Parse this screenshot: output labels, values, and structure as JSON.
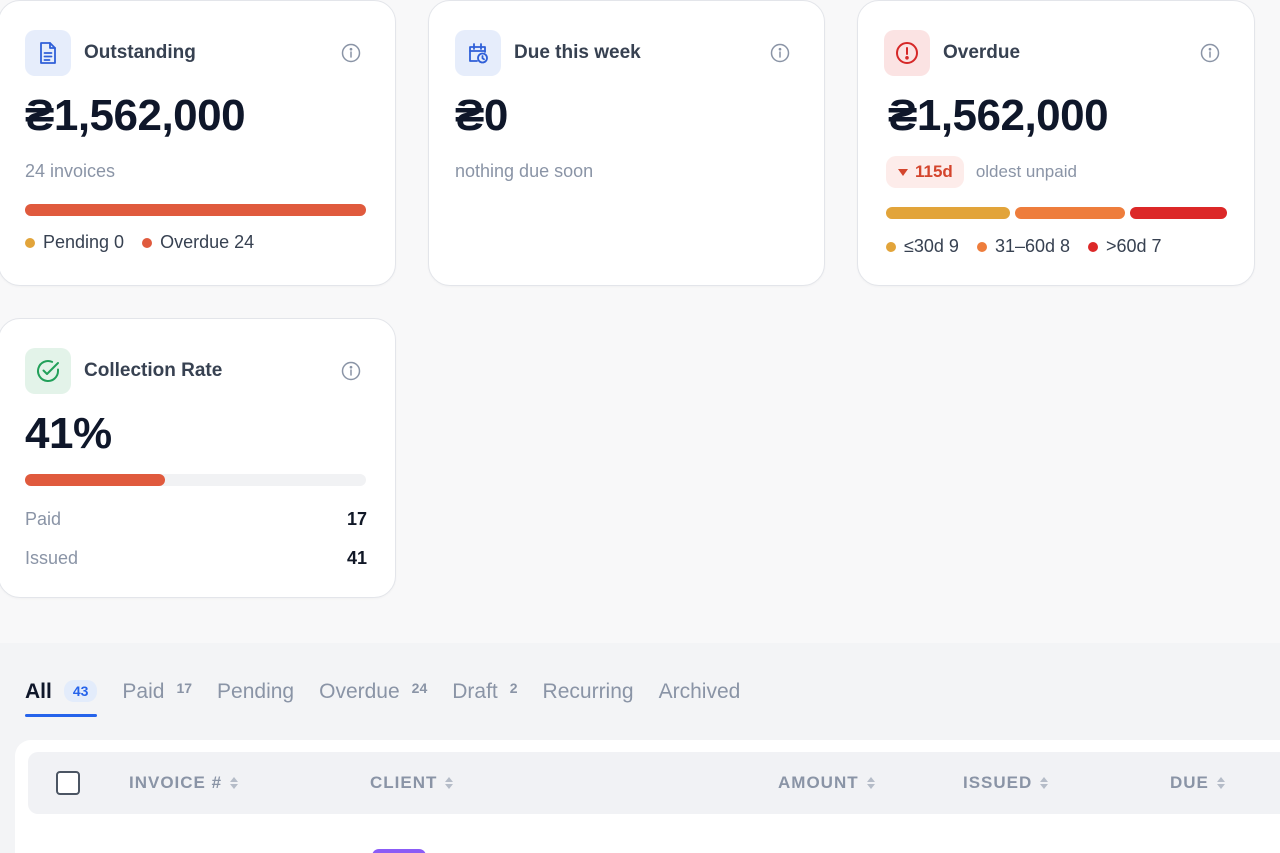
{
  "cards": {
    "outstanding": {
      "title": "Outstanding",
      "icon": "document-icon",
      "amount": "₴1,562,000",
      "subtitle": "24 invoices",
      "bar": {
        "pending_fraction": 0,
        "overdue_fraction": 1,
        "color": "#e05a3d"
      },
      "legend": [
        {
          "label": "Pending 0",
          "color": "#e2a43a"
        },
        {
          "label": "Overdue 24",
          "color": "#e05a3d"
        }
      ]
    },
    "due_this_week": {
      "title": "Due this week",
      "icon": "calendar-clock-icon",
      "amount": "₴0",
      "subtitle": "nothing due soon"
    },
    "overdue": {
      "title": "Overdue",
      "icon": "alert-circle-icon",
      "amount": "₴1,562,000",
      "badge": "115d",
      "badge_note": "oldest unpaid",
      "aging": [
        {
          "label": "≤30d 9",
          "count": 9,
          "color": "#e2a43a"
        },
        {
          "label": "31–60d 8",
          "count": 8,
          "color": "#ee7d3c"
        },
        {
          "label": ">60d 7",
          "count": 7,
          "color": "#dc2828"
        }
      ]
    },
    "collection_rate": {
      "title": "Collection Rate",
      "icon": "check-circle-icon",
      "value": "41%",
      "progress": 0.41,
      "rows": [
        {
          "label": "Paid",
          "value": "17"
        },
        {
          "label": "Issued",
          "value": "41"
        }
      ]
    }
  },
  "tabs": [
    {
      "label": "All",
      "count": "43",
      "active": true
    },
    {
      "label": "Paid",
      "count": "17"
    },
    {
      "label": "Pending",
      "count": ""
    },
    {
      "label": "Overdue",
      "count": "24"
    },
    {
      "label": "Draft",
      "count": "2"
    },
    {
      "label": "Recurring",
      "count": ""
    },
    {
      "label": "Archived",
      "count": ""
    }
  ],
  "table": {
    "columns": [
      "INVOICE #",
      "CLIENT",
      "AMOUNT",
      "ISSUED",
      "DUE"
    ]
  },
  "colors": {
    "accent": "#2563eb",
    "danger": "#e05a3d",
    "success": "#22a05a"
  }
}
